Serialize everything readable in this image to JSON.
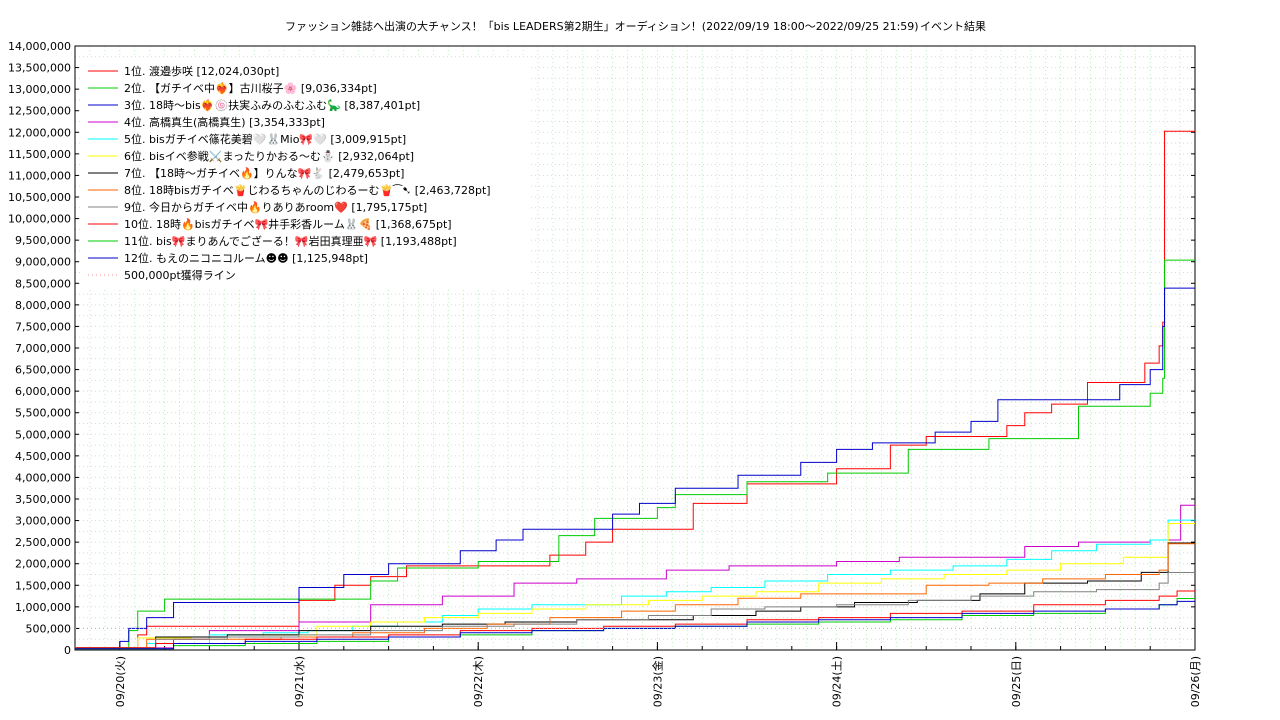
{
  "chart_data": {
    "type": "line",
    "title": "ファッション雑誌へ出演の大チャンス！「bis LEADERS第2期生」オーディション！(2022/09/19 18:00〜2022/09/25 21:59)",
    "subtitle": "イベント結果",
    "xlabel": "",
    "ylabel": "",
    "ylim": [
      0,
      14000000
    ],
    "y_ticks": [
      0,
      500000,
      1000000,
      1500000,
      2000000,
      2500000,
      3000000,
      3500000,
      4000000,
      4500000,
      5000000,
      5500000,
      6000000,
      6500000,
      7000000,
      7500000,
      8000000,
      8500000,
      9000000,
      9500000,
      10000000,
      10500000,
      11000000,
      11500000,
      12000000,
      12500000,
      13000000,
      13500000,
      14000000
    ],
    "y_tick_labels": [
      "0",
      "500,000",
      "1,000,000",
      "1,500,000",
      "2,000,000",
      "2,500,000",
      "3,000,000",
      "3,500,000",
      "4,000,000",
      "4,500,000",
      "5,000,000",
      "5,500,000",
      "6,000,000",
      "6,500,000",
      "7,000,000",
      "7,500,000",
      "8,000,000",
      "8,500,000",
      "9,000,000",
      "9,500,000",
      "10,000,000",
      "10,500,000",
      "11,000,000",
      "11,500,000",
      "12,000,000",
      "12,500,000",
      "13,000,000",
      "13,500,000",
      "14,000,000"
    ],
    "xlim": [
      -0.25,
      6.0
    ],
    "x_ticks": [
      0,
      1,
      2,
      3,
      4,
      5,
      6
    ],
    "x_tick_labels": [
      "09/20(火)",
      "09/21(水)",
      "09/22(木)",
      "09/23(金)",
      "09/24(土)",
      "09/25(日)",
      "09/26(月)"
    ],
    "grid": true,
    "legend_position": "top-left",
    "series": [
      {
        "name": "1位. 渡邉歩咲 [12,024,030pt]",
        "color": "#ff0000",
        "x": [
          -0.25,
          0.1,
          0.15,
          1.0,
          1.2,
          1.4,
          1.6,
          2.0,
          2.4,
          2.6,
          2.75,
          3.0,
          3.2,
          3.5,
          3.75,
          4.0,
          4.3,
          4.5,
          4.7,
          4.95,
          5.05,
          5.2,
          5.4,
          5.5,
          5.6,
          5.72,
          5.8,
          5.82,
          5.83,
          6.0
        ],
        "y": [
          50000,
          350000,
          550000,
          1150000,
          1500000,
          1700000,
          1950000,
          1950000,
          2200000,
          2500000,
          2800000,
          2800000,
          3400000,
          3850000,
          3850000,
          4200000,
          4750000,
          4950000,
          4950000,
          5200000,
          5500000,
          5700000,
          6200000,
          6200000,
          6200000,
          6650000,
          7050000,
          7600000,
          12024030,
          12024030
        ]
      },
      {
        "name": "2位. 【ガチイベ中❤️‍🔥】古川桜子🌸 [9,036,334pt]",
        "color": "#00cc00",
        "x": [
          -0.25,
          0.05,
          0.1,
          0.25,
          1.2,
          1.4,
          1.55,
          1.8,
          2.0,
          2.3,
          2.45,
          2.65,
          2.85,
          3.0,
          3.1,
          3.5,
          3.7,
          3.95,
          4.2,
          4.4,
          4.6,
          4.85,
          5.1,
          5.35,
          5.55,
          5.75,
          5.82,
          5.83,
          6.0
        ],
        "y": [
          50000,
          450000,
          900000,
          1180000,
          1180000,
          1600000,
          1900000,
          1900000,
          2050000,
          2050000,
          2650000,
          3050000,
          3050000,
          3300000,
          3600000,
          3900000,
          3900000,
          4100000,
          4100000,
          4650000,
          4650000,
          4900000,
          4900000,
          5650000,
          5650000,
          5950000,
          6300000,
          9036334,
          9036334
        ]
      },
      {
        "name": "3位. 18時〜bis❤️‍🔥🍥扶実ふみのふむふむ🦕 [8,387,401pt]",
        "color": "#0000cc",
        "x": [
          -0.25,
          0.0,
          0.05,
          0.15,
          0.3,
          0.7,
          1.0,
          1.25,
          1.5,
          1.75,
          1.9,
          2.1,
          2.25,
          2.35,
          2.5,
          2.75,
          2.9,
          3.1,
          3.25,
          3.45,
          3.8,
          4.0,
          4.2,
          4.4,
          4.55,
          4.75,
          4.9,
          5.15,
          5.35,
          5.5,
          5.58,
          5.75,
          5.82,
          5.83,
          6.0
        ],
        "y": [
          50000,
          200000,
          500000,
          750000,
          1100000,
          1100000,
          1450000,
          1750000,
          2000000,
          2000000,
          2300000,
          2550000,
          2800000,
          2800000,
          2800000,
          3150000,
          3400000,
          3750000,
          3750000,
          4050000,
          4350000,
          4650000,
          4800000,
          4800000,
          5050000,
          5300000,
          5800000,
          5800000,
          5800000,
          5800000,
          6150000,
          6500000,
          7500000,
          8387401,
          8387401
        ]
      },
      {
        "name": "4位. 高橋真生(高橋真生) [3,354,333pt]",
        "color": "#cc00cc",
        "x": [
          -0.25,
          0.3,
          0.5,
          1.0,
          1.4,
          1.8,
          2.2,
          2.55,
          2.8,
          3.05,
          3.4,
          3.7,
          4.0,
          4.35,
          4.7,
          5.05,
          5.35,
          5.75,
          5.92,
          6.0
        ],
        "y": [
          50000,
          250000,
          450000,
          650000,
          1050000,
          1250000,
          1550000,
          1650000,
          1650000,
          1850000,
          1950000,
          1950000,
          2050000,
          2150000,
          2150000,
          2400000,
          2500000,
          2550000,
          3354333,
          3354333
        ]
      },
      {
        "name": "5位. bisガチイベ篠花美碧🤍🐰Mio🎀🤍 [3,009,915pt]",
        "color": "#00ffff",
        "x": [
          -0.25,
          0.15,
          0.5,
          0.8,
          1.05,
          1.3,
          1.55,
          1.8,
          2.0,
          2.3,
          2.55,
          2.8,
          3.05,
          3.3,
          3.6,
          3.95,
          4.3,
          4.65,
          4.95,
          5.2,
          5.45,
          5.75,
          5.85,
          6.0
        ],
        "y": [
          50000,
          150000,
          350000,
          400000,
          450000,
          550000,
          650000,
          800000,
          950000,
          1050000,
          1050000,
          1250000,
          1350000,
          1450000,
          1600000,
          1750000,
          1850000,
          1950000,
          2100000,
          2300000,
          2450000,
          2550000,
          3009915,
          3009915
        ]
      },
      {
        "name": "6位. bisイベ参戦⚔️まったりかおる〜む⛄ [2,932,064pt]",
        "color": "#ffff00",
        "x": [
          -0.25,
          0.1,
          0.4,
          0.8,
          1.1,
          1.4,
          1.7,
          2.0,
          2.3,
          2.6,
          2.95,
          3.25,
          3.55,
          3.9,
          4.25,
          4.6,
          4.95,
          5.25,
          5.6,
          5.85,
          6.0
        ],
        "y": [
          50000,
          280000,
          300000,
          350000,
          550000,
          650000,
          750000,
          850000,
          950000,
          1050000,
          1150000,
          1250000,
          1350000,
          1550000,
          1650000,
          1750000,
          1850000,
          2000000,
          2150000,
          2932064,
          2932064
        ]
      },
      {
        "name": "7位. 【18時〜ガチイベ🔥】りんな🎀🐇 [2,479,653pt]",
        "color": "#000000",
        "x": [
          -0.25,
          0.2,
          0.6,
          1.0,
          1.4,
          1.8,
          2.15,
          2.55,
          2.9,
          3.2,
          3.55,
          3.8,
          4.1,
          4.45,
          4.8,
          5.05,
          5.4,
          5.7,
          5.85,
          6.0
        ],
        "y": [
          50000,
          300000,
          350000,
          450000,
          550000,
          600000,
          650000,
          700000,
          700000,
          800000,
          900000,
          1000000,
          1100000,
          1150000,
          1300000,
          1550000,
          1600000,
          1800000,
          2479653,
          2479653
        ]
      },
      {
        "name": "8位. 18時bisガチイベ🍟じわるちゃんのじわるーむ🍟⁀➷ [2,463,728pt]",
        "color": "#ff6600",
        "x": [
          -0.25,
          0.15,
          0.5,
          0.9,
          1.3,
          1.7,
          2.05,
          2.4,
          2.8,
          3.1,
          3.45,
          3.8,
          4.15,
          4.5,
          4.85,
          5.15,
          5.5,
          5.8,
          5.85,
          6.0
        ],
        "y": [
          50000,
          250000,
          250000,
          300000,
          400000,
          500000,
          600000,
          750000,
          900000,
          1050000,
          1200000,
          1300000,
          1300000,
          1500000,
          1550000,
          1650000,
          1750000,
          1850000,
          2463728,
          2463728
        ]
      },
      {
        "name": "9位. 今日からガチイベ中🔥りありあroom❤️ [1,795,175pt]",
        "color": "#808080",
        "x": [
          -0.25,
          0.2,
          0.6,
          1.0,
          1.4,
          1.8,
          2.2,
          2.55,
          2.95,
          3.3,
          3.6,
          4.0,
          4.4,
          4.75,
          5.1,
          5.45,
          5.8,
          5.85,
          6.0
        ],
        "y": [
          50000,
          250000,
          300000,
          350000,
          450000,
          550000,
          600000,
          700000,
          800000,
          950000,
          1000000,
          1050000,
          1150000,
          1250000,
          1350000,
          1400000,
          1550000,
          1795175,
          1795175
        ]
      },
      {
        "name": "10位. 18時🔥bisガチイベ🎀井手彩香ルーム🐰🍕 [1,368,675pt]",
        "color": "#ff0000",
        "x": [
          -0.25,
          0.2,
          0.7,
          1.1,
          1.5,
          1.9,
          2.3,
          2.7,
          3.1,
          3.5,
          3.9,
          4.3,
          4.7,
          5.1,
          5.5,
          5.8,
          5.9,
          6.0
        ],
        "y": [
          50000,
          150000,
          250000,
          300000,
          350000,
          450000,
          500000,
          550000,
          600000,
          700000,
          750000,
          850000,
          900000,
          1050000,
          1150000,
          1250000,
          1368675,
          1368675
        ]
      },
      {
        "name": "11位. bis🎀まりあんでござーる！🎀岩田真理亜🎀 [1,193,488pt]",
        "color": "#00cc00",
        "x": [
          -0.25,
          0.3,
          0.7,
          1.1,
          1.5,
          1.9,
          2.3,
          2.7,
          3.1,
          3.5,
          3.9,
          4.3,
          4.7,
          5.1,
          5.5,
          5.8,
          5.9,
          6.0
        ],
        "y": [
          30000,
          100000,
          150000,
          200000,
          300000,
          350000,
          450000,
          500000,
          550000,
          600000,
          650000,
          700000,
          800000,
          850000,
          950000,
          1050000,
          1193488,
          1193488
        ]
      },
      {
        "name": "12位. もえのニコニコルーム☻☻ [1,125,948pt]",
        "color": "#0000cc",
        "x": [
          -0.25,
          0.3,
          0.7,
          1.1,
          1.5,
          1.9,
          2.3,
          2.7,
          3.1,
          3.5,
          3.9,
          4.3,
          4.7,
          5.1,
          5.5,
          5.8,
          5.9,
          6.0
        ],
        "y": [
          30000,
          150000,
          200000,
          250000,
          300000,
          400000,
          450000,
          500000,
          550000,
          650000,
          700000,
          750000,
          850000,
          900000,
          950000,
          1050000,
          1125948,
          1125948
        ]
      },
      {
        "name": "500,000pt獲得ライン",
        "color": "#ff9999",
        "dashed": true,
        "x": [
          -0.25,
          6.0
        ],
        "y": [
          500000,
          500000
        ]
      }
    ]
  }
}
